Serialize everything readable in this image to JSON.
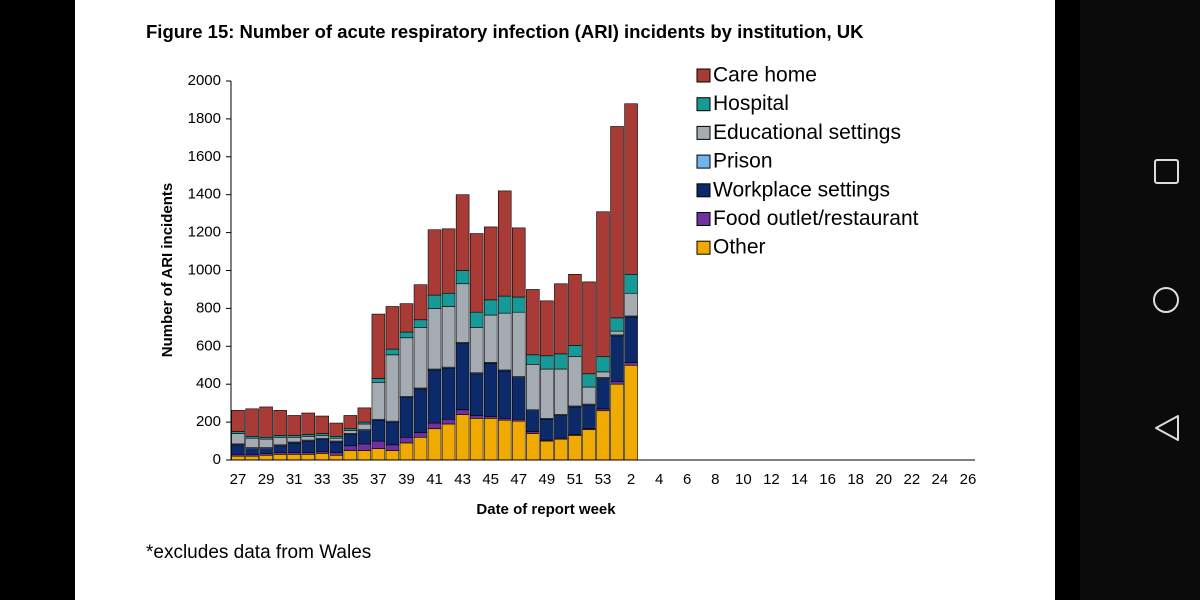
{
  "chart_data": {
    "type": "stacked-bar",
    "title": "Figure 15: Number of acute respiratory infection (ARI) incidents by institution, UK",
    "x_label": "Date of report week",
    "y_label": "Number of ARI incidents",
    "footnote": "*excludes data from Wales",
    "categories": [
      "27",
      null,
      "29",
      null,
      "31",
      null,
      "33",
      null,
      "35",
      null,
      "37",
      null,
      "39",
      null,
      "41",
      null,
      "43",
      null,
      "45",
      null,
      "47",
      null,
      "49",
      null,
      "51",
      null,
      "53",
      null,
      "2",
      null,
      "4",
      null,
      "6",
      null,
      "8",
      null,
      "10",
      null,
      "12",
      null,
      "14",
      null,
      "16",
      null,
      "18",
      null,
      "20",
      null,
      "22",
      null,
      "24",
      null,
      "26"
    ],
    "series": [
      {
        "name": "Care home",
        "color": "#a93b36",
        "values": [
          112,
          145,
          160,
          132,
          105,
          113,
          92,
          70,
          70,
          75,
          340,
          225,
          150,
          185,
          345,
          340,
          400,
          415,
          385,
          555,
          365,
          345,
          290,
          370,
          375,
          485,
          765,
          1010,
          900,
          null,
          null,
          null,
          null,
          null,
          null,
          null,
          null,
          null,
          null,
          null,
          null,
          null,
          null,
          null,
          null,
          null,
          null,
          null,
          null,
          null,
          null,
          null,
          null
        ]
      },
      {
        "name": "Hospital",
        "color": "#169a97",
        "values": [
          10,
          10,
          10,
          10,
          10,
          10,
          10,
          10,
          10,
          10,
          20,
          30,
          30,
          40,
          70,
          70,
          70,
          80,
          80,
          90,
          80,
          50,
          70,
          80,
          60,
          70,
          80,
          70,
          100,
          null,
          null,
          null,
          null,
          null,
          null,
          null,
          null,
          null,
          null,
          null,
          null,
          null,
          null,
          null,
          null,
          null,
          null,
          null,
          null,
          null,
          null,
          null,
          null
        ]
      },
      {
        "name": "Educational settings",
        "color": "#a4abb3",
        "values": [
          55,
          50,
          45,
          40,
          25,
          20,
          15,
          15,
          15,
          30,
          195,
          350,
          310,
          320,
          320,
          320,
          310,
          240,
          250,
          300,
          340,
          240,
          260,
          240,
          260,
          90,
          30,
          20,
          120,
          null,
          null,
          null,
          null,
          null,
          null,
          null,
          null,
          null,
          null,
          null,
          null,
          null,
          null,
          null,
          null,
          null,
          null,
          null,
          null,
          null,
          null,
          null,
          null
        ]
      },
      {
        "name": "Prison",
        "color": "#6fb3ef",
        "values": [
          5,
          5,
          5,
          5,
          5,
          5,
          5,
          5,
          5,
          5,
          5,
          5,
          5,
          5,
          5,
          5,
          5,
          5,
          5,
          5,
          5,
          5,
          5,
          5,
          5,
          5,
          5,
          5,
          5,
          null,
          null,
          null,
          null,
          null,
          null,
          null,
          null,
          null,
          null,
          null,
          null,
          null,
          null,
          null,
          null,
          null,
          null,
          null,
          null,
          null,
          null,
          null,
          null
        ]
      },
      {
        "name": "Workplace settings",
        "color": "#0c2a6a",
        "values": [
          50,
          30,
          25,
          35,
          50,
          60,
          65,
          55,
          60,
          70,
          110,
          120,
          210,
          230,
          280,
          270,
          350,
          220,
          280,
          250,
          220,
          110,
          110,
          120,
          145,
          125,
          160,
          240,
          240,
          null,
          null,
          null,
          null,
          null,
          null,
          null,
          null,
          null,
          null,
          null,
          null,
          null,
          null,
          null,
          null,
          null,
          null,
          null,
          null,
          null,
          null,
          null,
          null
        ]
      },
      {
        "name": "Food outlet/restaurant",
        "color": "#7030a0",
        "values": [
          10,
          10,
          10,
          10,
          10,
          10,
          10,
          15,
          25,
          35,
          40,
          30,
          30,
          25,
          30,
          25,
          25,
          15,
          10,
          10,
          10,
          10,
          5,
          5,
          5,
          5,
          10,
          15,
          15,
          null,
          null,
          null,
          null,
          null,
          null,
          null,
          null,
          null,
          null,
          null,
          null,
          null,
          null,
          null,
          null,
          null,
          null,
          null,
          null,
          null,
          null,
          null,
          null
        ]
      },
      {
        "name": "Other",
        "color": "#f0aa00",
        "values": [
          20,
          20,
          25,
          30,
          30,
          30,
          35,
          25,
          50,
          50,
          60,
          50,
          90,
          120,
          165,
          190,
          240,
          220,
          220,
          210,
          205,
          140,
          100,
          110,
          130,
          160,
          260,
          400,
          500,
          null,
          null,
          null,
          null,
          null,
          null,
          null,
          null,
          null,
          null,
          null,
          null,
          null,
          null,
          null,
          null,
          null,
          null,
          null,
          null,
          null,
          null,
          null,
          null
        ]
      }
    ],
    "ylim": [
      0,
      2000
    ],
    "yticks": [
      0,
      200,
      400,
      600,
      800,
      1000,
      1200,
      1400,
      1600,
      1800,
      2000
    ],
    "grid": false,
    "legend": "top-right"
  }
}
